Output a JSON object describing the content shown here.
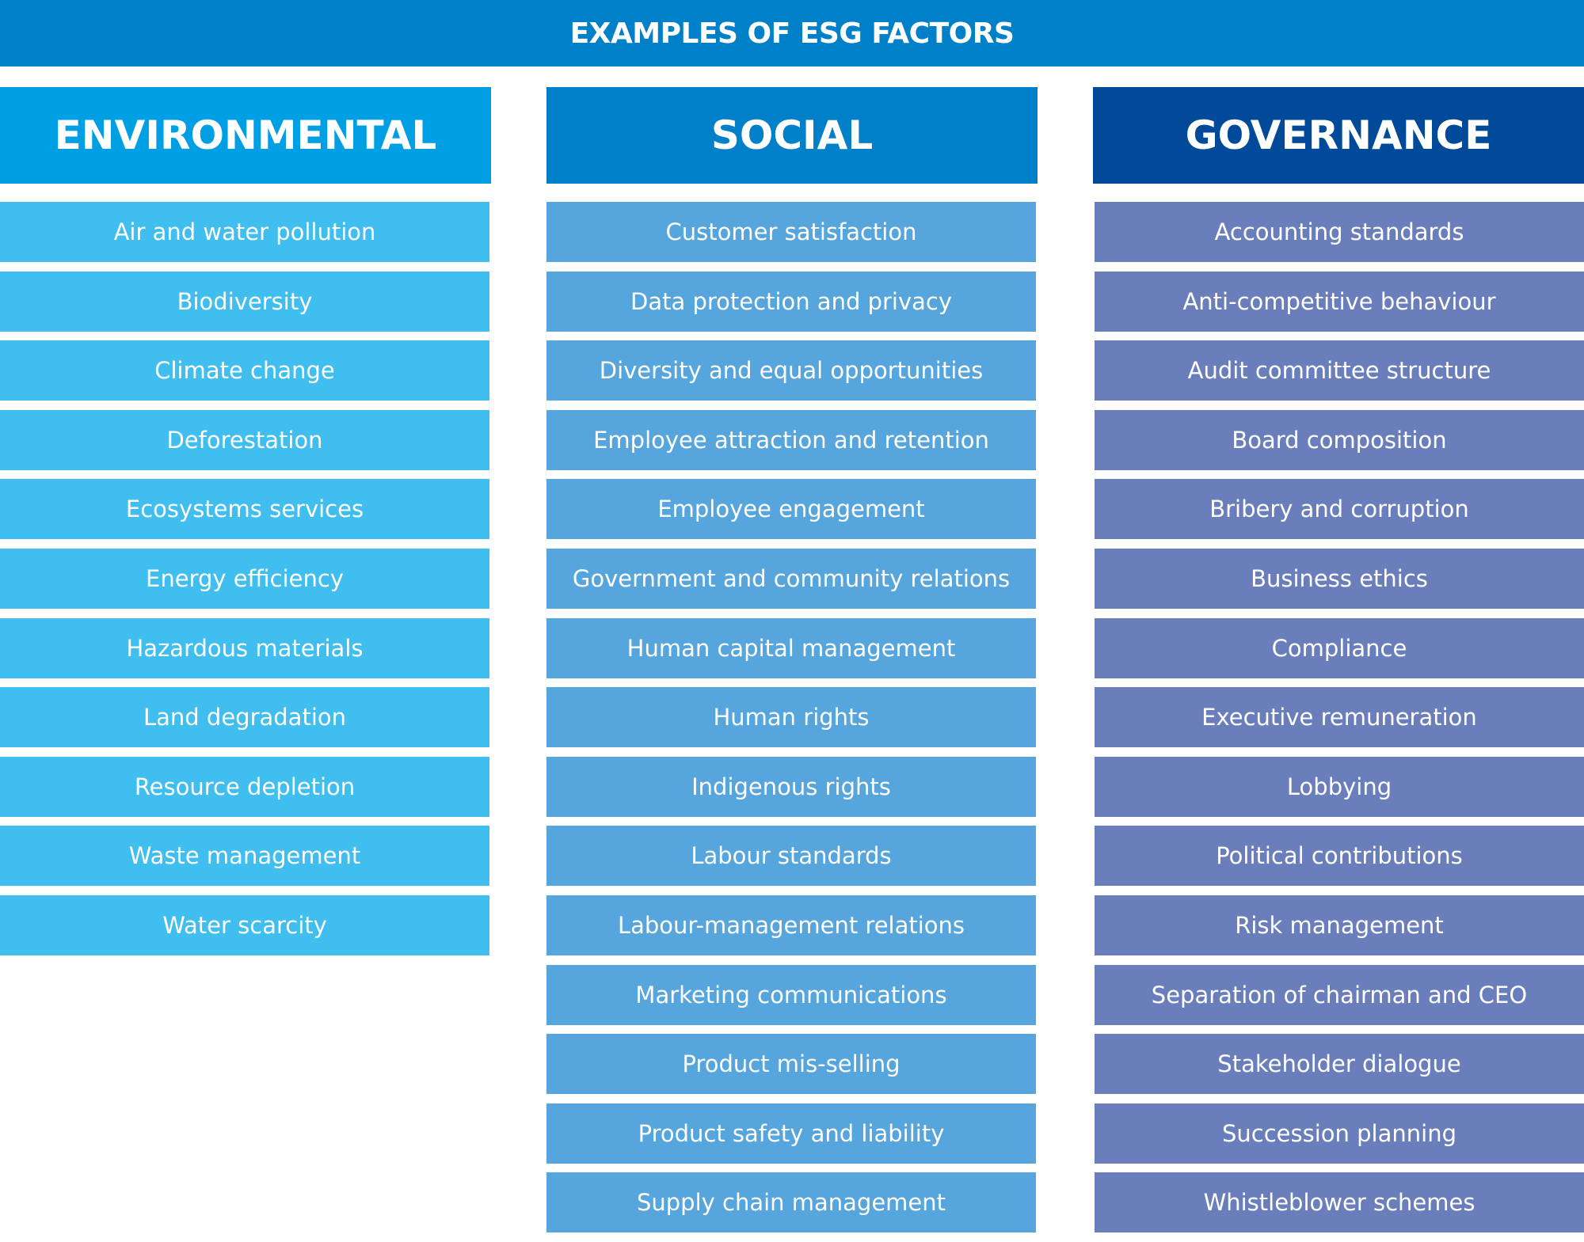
{
  "title": "EXAMPLES OF ESG FACTORS",
  "colors": {
    "title_bg": "#0080C9",
    "environmental": "#009FE3",
    "social": "#0080C9",
    "governance": "#004A99",
    "environmental_item": "#40BEEF",
    "social_item": "#56A5DC",
    "governance_item": "#6A7EBC"
  },
  "columns": [
    {
      "heading": "ENVIRONMENTAL",
      "items": [
        "Air and water pollution",
        "Biodiversity",
        "Climate change",
        "Deforestation",
        "Ecosystems services",
        "Energy efficiency",
        "Hazardous materials",
        "Land degradation",
        "Resource depletion",
        "Waste management",
        "Water scarcity"
      ]
    },
    {
      "heading": "SOCIAL",
      "items": [
        "Customer satisfaction",
        "Data protection and privacy",
        "Diversity and equal opportunities",
        "Employee attraction and retention",
        "Employee engagement",
        "Government and community relations",
        "Human capital management",
        "Human rights",
        "Indigenous rights",
        "Labour standards",
        "Labour-management relations",
        "Marketing communications",
        "Product mis-selling",
        "Product safety and liability",
        "Supply chain management"
      ]
    },
    {
      "heading": "GOVERNANCE",
      "items": [
        "Accounting standards",
        "Anti-competitive behaviour",
        "Audit committee structure",
        "Board composition",
        "Bribery and corruption",
        "Business ethics",
        "Compliance",
        "Executive remuneration",
        "Lobbying",
        "Political contributions",
        "Risk management",
        "Separation of chairman and CEO",
        "Stakeholder dialogue",
        "Succession planning",
        "Whistleblower schemes"
      ]
    }
  ]
}
